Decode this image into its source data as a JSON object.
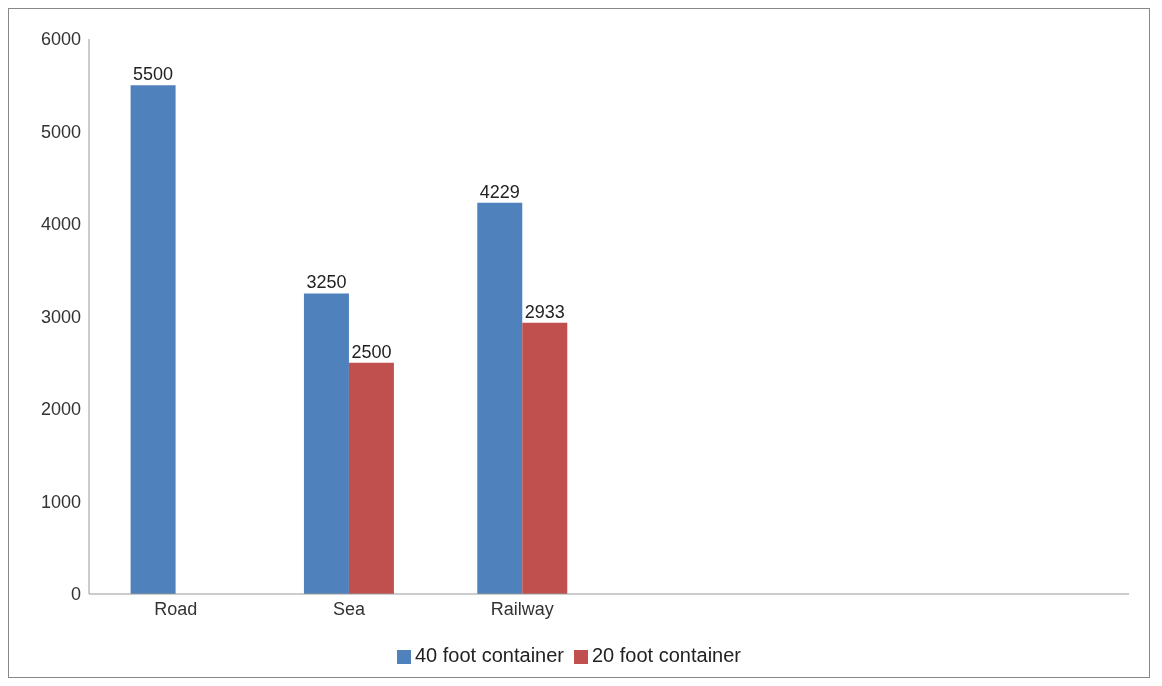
{
  "chart_data": {
    "type": "bar",
    "categories": [
      "Road",
      "Sea",
      "Railway",
      null,
      null,
      null
    ],
    "series": [
      {
        "name": "40 foot container",
        "color": "#4f81bd",
        "values": [
          5500,
          3250,
          4229,
          null,
          null,
          null
        ]
      },
      {
        "name": "20 foot container",
        "color": "#c0504d",
        "values": [
          null,
          2500,
          2933,
          null,
          null,
          null
        ]
      }
    ],
    "ylim": [
      0,
      6000
    ],
    "yticks": [
      0,
      1000,
      2000,
      3000,
      4000,
      5000,
      6000
    ],
    "grid": false,
    "legend": "bottom",
    "data_labels": true
  }
}
